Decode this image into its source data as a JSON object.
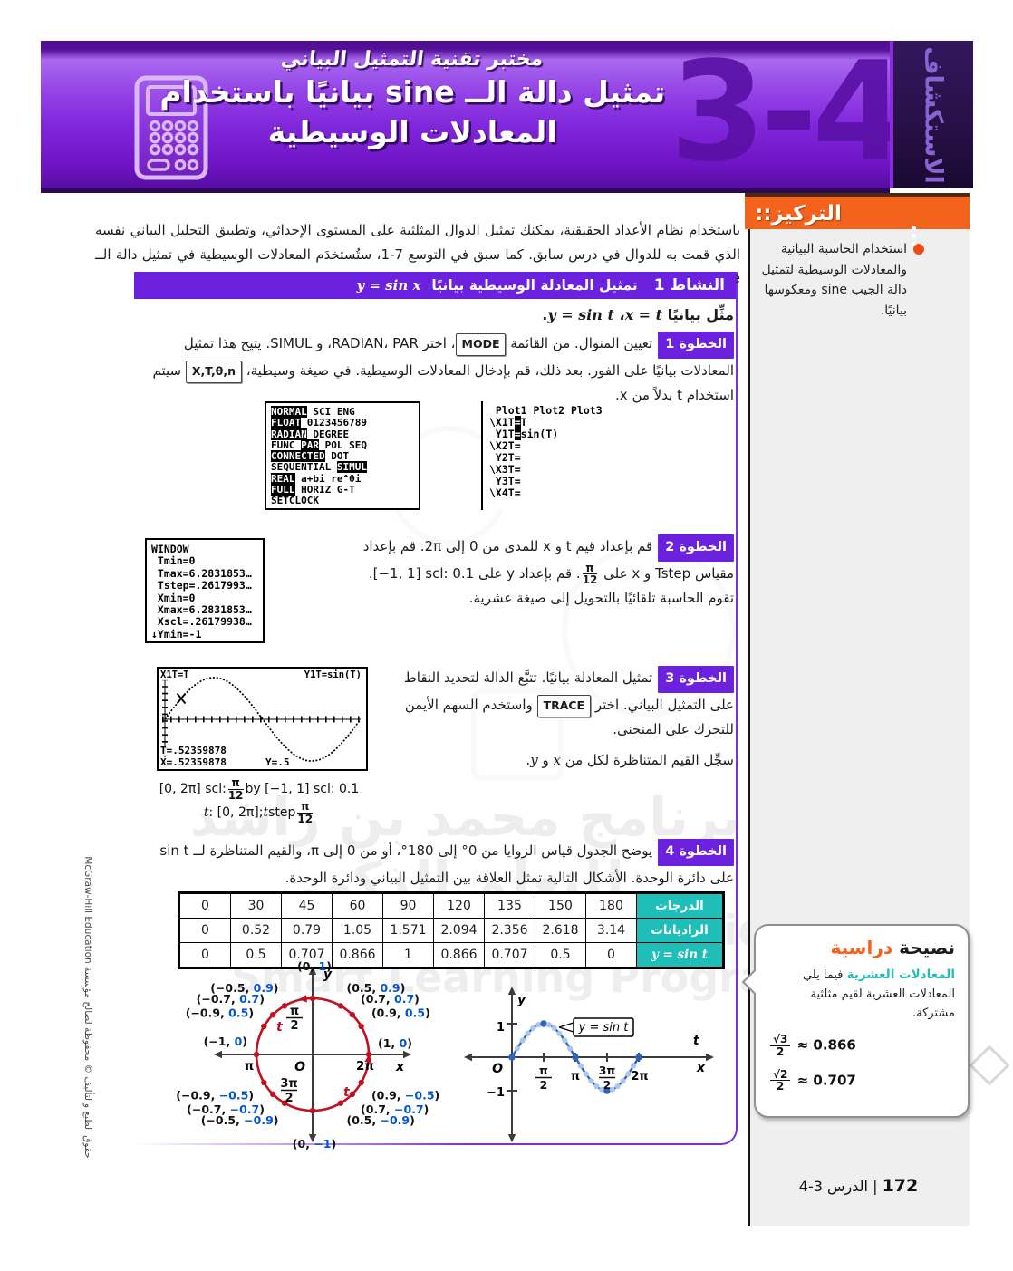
{
  "header": {
    "kicker": "مختبر تقنية التمثيل البياني",
    "title_line1": "تمثيل دالة الــ sine بيانيًا باستخدام",
    "title_line2": "المعادلات الوسيطية",
    "lesson_number": "3-4",
    "side_tab": "الاستكشاف"
  },
  "focus": {
    "label": "التركيز",
    "dots": "::",
    "bullet_text": "استخدام الحاسبة البيانية والمعادلات الوسيطية لتمثيل دالة الجيب sine ومعكوسها بيانيًا."
  },
  "intro": "باستخدام نظام الأعداد الحقيقية، يمكنك تمثيل الدوال المثلثية على المستوى الإحداثي، وتطبيق التحليل البياني نفسه الذي قمت به للدوال في درس سابق. كما سبق في التوسع 7-1، ستُستخدَم المعادلات الوسيطية في تمثيل دالة الــ sine.",
  "activity": {
    "label": "النشاط 1",
    "title": "تمثيل المعادلة الوسيطية بيانيًا",
    "equation": "y = sin x",
    "instruction": [
      {
        "t": "مثِّل بيانيًا "
      },
      {
        "math": "x = t"
      },
      {
        "t": "، "
      },
      {
        "math": "y = sin t"
      },
      {
        "t": "."
      }
    ]
  },
  "steps": [
    {
      "label": "الخطوة 1",
      "segments": [
        {
          "t": "تعيين المنوال. من القائمة "
        },
        {
          "key": "MODE"
        },
        {
          "t": "، اختر RADIAN، PAR، و SIMUL. يتيح هذا تمثيل المعادلات بيانيًا على الفور. بعد ذلك، قم بإدخال المعادلات الوسيطية. في صيغة وسيطية، "
        },
        {
          "key": "X,T,θ,n"
        },
        {
          "t": " سيتم استخدام t بدلاً من x."
        }
      ]
    },
    {
      "label": "الخطوة 2",
      "segments": [
        {
          "t": "قم بإعداد قيم t و x للمدى من 0 إلى 2π. قم بإعداد مقياس Tstep و x على "
        },
        {
          "frac": [
            "π",
            "12"
          ]
        },
        {
          "t": ". قم بإعداد y على "
        },
        {
          "ltr": "[−1, 1] scl: 0.1"
        },
        {
          "t": ". تقوم الحاسبة تلقائيًا بالتحويل إلى صيغة عشرية."
        }
      ]
    },
    {
      "label": "الخطوة 3",
      "segments": [
        {
          "t": "تمثيل المعادلة بيانيًا. تتبَّع الدالة لتحديد النقاط على التمثيل البياني. اختر "
        },
        {
          "key": "TRACE"
        },
        {
          "t": " واستخدم السهم الأيمن للتحرك على المنحنى."
        }
      ],
      "note": [
        {
          "t": "سجِّل القيم المتناظرة لكل من "
        },
        {
          "math": "x"
        },
        {
          "t": " و "
        },
        {
          "math": "y"
        },
        {
          "t": "."
        }
      ]
    },
    {
      "label": "الخطوة 4",
      "segments": [
        {
          "t": "يوضح الجدول قياس الزوايا من 0° إلى 180°، أو من 0 إلى π، والقيم المتناظرة لــ sin t على دائرة الوحدة. الأشكال التالية تمثل العلاقة بين التمثيل البياني ودائرة الوحدة."
        }
      ]
    }
  ],
  "calc": {
    "mode": [
      [
        {
          "t": "NORMAL",
          "hl": true
        },
        {
          "t": " SCI ENG"
        }
      ],
      [
        {
          "t": "FLOAT",
          "hl": true
        },
        {
          "t": " 0123456789"
        }
      ],
      [
        {
          "t": "RADIAN",
          "hl": true
        },
        {
          "t": " DEGREE"
        }
      ],
      [
        {
          "t": "FUNC "
        },
        {
          "t": "PAR",
          "hl": true
        },
        {
          "t": " POL SEQ"
        }
      ],
      [
        {
          "t": "CONNECTED",
          "hl": true
        },
        {
          "t": " DOT"
        }
      ],
      [
        {
          "t": "SEQUENTIAL "
        },
        {
          "t": "SIMUL",
          "hl": true
        }
      ],
      [
        {
          "t": "REAL",
          "hl": true
        },
        {
          "t": " a+bi re^θi"
        }
      ],
      [
        {
          "t": "FULL",
          "hl": true
        },
        {
          "t": " HORIZ G-T"
        }
      ],
      [
        {
          "t": "SETCLOCK"
        }
      ]
    ],
    "param": [
      [
        {
          "t": " Plot1 Plot2 Plot3"
        }
      ],
      [
        {
          "t": "\\X1T"
        },
        {
          "t": "=",
          "hl": true
        },
        {
          "t": "T"
        }
      ],
      [
        {
          "t": " Y1T"
        },
        {
          "t": "=",
          "hl": true
        },
        {
          "t": "sin(T)"
        }
      ],
      [
        {
          "t": "\\X2T="
        }
      ],
      [
        {
          "t": " Y2T="
        }
      ],
      [
        {
          "t": "\\X3T="
        }
      ],
      [
        {
          "t": " Y3T="
        }
      ],
      [
        {
          "t": "\\X4T="
        }
      ]
    ],
    "window": [
      [
        {
          "t": "WINDOW"
        }
      ],
      [
        {
          "t": " Tmin=0"
        }
      ],
      [
        {
          "t": " Tmax=6.2831853…"
        }
      ],
      [
        {
          "t": " Tstep=.2617993…"
        }
      ],
      [
        {
          "t": " Xmin=0"
        }
      ],
      [
        {
          "t": " Xmax=6.2831853…"
        }
      ],
      [
        {
          "t": " Xscl=.26179938…"
        }
      ],
      [
        {
          "t": "↓Ymin=-1"
        }
      ]
    ],
    "trace": {
      "eq_left": "X1T=T",
      "eq_right": "Y1T=sin(T)",
      "readout_t": "T=.52359878",
      "readout_x": "X=.52359878",
      "readout_y": "Y=.5"
    }
  },
  "trace_captions": {
    "line1": [
      {
        "ltr": "[0, 2π] scl: "
      },
      {
        "frac": [
          "π",
          "12"
        ]
      },
      {
        "ltr": " by [−1, 1] scl: 0.1"
      }
    ],
    "line2": [
      {
        "math": "t"
      },
      {
        "ltr": ": [0, 2π]; "
      },
      {
        "math": "t"
      },
      {
        "ltr": "step "
      },
      {
        "frac": [
          "π",
          "12"
        ]
      }
    ]
  },
  "table": {
    "rows": [
      {
        "cells": [
          "0",
          "30",
          "45",
          "60",
          "90",
          "120",
          "135",
          "150",
          "180"
        ],
        "header": "الدرجات",
        "math": false
      },
      {
        "cells": [
          "0",
          "0.52",
          "0.79",
          "1.05",
          "1.571",
          "2.094",
          "2.356",
          "2.618",
          "3.14"
        ],
        "header": "الراديانات",
        "math": false
      },
      {
        "cells": [
          "0",
          "0.5",
          "0.707",
          "0.866",
          "1",
          "0.866",
          "0.707",
          "0.5",
          "0"
        ],
        "header": "y = sin t",
        "math": true
      }
    ]
  },
  "unit_circle": {
    "points": [
      {
        "a": 0,
        "x": "1",
        "y": "0"
      },
      {
        "a": 30,
        "x": "0.9",
        "y": "0.5"
      },
      {
        "a": 45,
        "x": "0.7",
        "y": "0.7"
      },
      {
        "a": 60,
        "x": "0.5",
        "y": "0.9"
      },
      {
        "a": 90,
        "x": "0",
        "y": "1"
      },
      {
        "a": 120,
        "x": "−0.5",
        "y": "0.9"
      },
      {
        "a": 135,
        "x": "−0.7",
        "y": "0.7"
      },
      {
        "a": 150,
        "x": "−0.9",
        "y": "0.5"
      },
      {
        "a": 180,
        "x": "−1",
        "y": "0"
      },
      {
        "a": 210,
        "x": "−0.9",
        "y": "−0.5"
      },
      {
        "a": 225,
        "x": "−0.7",
        "y": "−0.7"
      },
      {
        "a": 240,
        "x": "−0.5",
        "y": "−0.9"
      },
      {
        "a": 270,
        "x": "0",
        "y": "−1"
      },
      {
        "a": 300,
        "x": "0.5",
        "y": "−0.9"
      },
      {
        "a": 315,
        "x": "0.7",
        "y": "−0.7"
      },
      {
        "a": 330,
        "x": "0.9",
        "y": "−0.5"
      }
    ],
    "axis_y": "y",
    "axis_x": "x",
    "origin": "O",
    "q_top": {
      "num": "π",
      "den": "2"
    },
    "q_bottom": {
      "num": "3π",
      "den": "2"
    },
    "left_label": "π",
    "right_label": "2π",
    "t_label": "t"
  },
  "sine_graph": {
    "axis_y": "y",
    "axis_x": "x",
    "axis_t": "t",
    "origin": "O",
    "ytick_pos": "1",
    "ytick_neg": "−1",
    "xtick_pi": "π",
    "xtick_2pi": "2π",
    "frac_half": {
      "num": "π",
      "den": "2"
    },
    "frac_3half": {
      "num": "3π",
      "den": "2"
    },
    "curve_label": "y = sin t"
  },
  "study_tip": {
    "title_1": "نصيحة",
    "title_2": "دراسية",
    "lead": "المعادلات العشرية",
    "body": " فيما يلي المعادلات العشرية لقيم مثلثية مشتركة.",
    "formulas": [
      {
        "num": "√3",
        "den": "2",
        "approx": "≈ 0.866"
      },
      {
        "num": "√2",
        "den": "2",
        "approx": "≈ 0.707"
      }
    ]
  },
  "footer": {
    "page": "172",
    "sep": "|",
    "lesson": "الدرس 3-4"
  },
  "copyright": "حقوق الطبع والتأليف © محفوظة لصالح مؤسسة McGraw-Hill Education",
  "watermarks": [
    "برنامج محمد بن راشد",
    "للتعلم الذكي",
    "Mohammed Bin Rashid",
    "Smart Learning Program"
  ],
  "colors": {
    "accent_purple": "#6b21de",
    "banner_purple": "#8a2be0",
    "orange": "#f4631c",
    "teal": "#1fbeb9",
    "circle_red": "#c21021",
    "value_blue": "#0055d4",
    "curve_blue": "#2e62bd",
    "curve_dot_light": "#a9c7ef"
  }
}
